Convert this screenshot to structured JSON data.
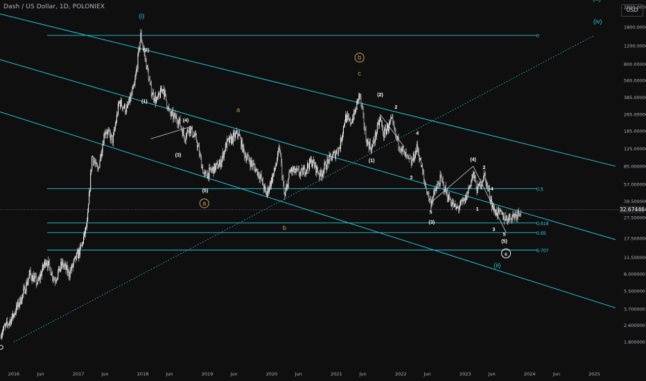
{
  "header": {
    "title": "Dash / US Dollar, 1D, POLONIEX",
    "currency": "USD",
    "last_price": "32.674464"
  },
  "colors": {
    "background": "#0f0f0f",
    "channel": "#26c6da",
    "fib": "#2ec7dc",
    "candles": "#e8e8e8",
    "wave_gold": "#c8a456"
  },
  "chart_data": {
    "type": "candlestick",
    "title": "Dash / US Dollar, 1D, POLONIEX",
    "y_scale": "log",
    "ylim": [
      1.3,
      2800
    ],
    "xlim": [
      "2015-10-15",
      "2025-05-01"
    ],
    "y_ticks": [
      "2800.000000",
      "1800.000000",
      "1200.000000",
      "800.000000",
      "560.000000",
      "385.000000",
      "265.000000",
      "185.000000",
      "125.000000",
      "85.000000",
      "57.000000",
      "39.500000",
      "27.500000",
      "17.500000",
      "11.500000",
      "8.000000",
      "5.500000",
      "3.700000",
      "2.600000",
      "1.800000"
    ],
    "x_ticks": [
      {
        "label": "2016",
        "date": "2016-01-01"
      },
      {
        "label": "Jun",
        "date": "2016-06-01"
      },
      {
        "label": "2017",
        "date": "2017-01-01"
      },
      {
        "label": "Jun",
        "date": "2017-06-01"
      },
      {
        "label": "2018",
        "date": "2018-01-01"
      },
      {
        "label": "Jun",
        "date": "2018-06-01"
      },
      {
        "label": "2019",
        "date": "2019-01-01"
      },
      {
        "label": "Jun",
        "date": "2019-06-01"
      },
      {
        "label": "2020",
        "date": "2020-01-01"
      },
      {
        "label": "Jun",
        "date": "2020-06-01"
      },
      {
        "label": "2021",
        "date": "2021-01-01"
      },
      {
        "label": "Jun",
        "date": "2021-06-01"
      },
      {
        "label": "2022",
        "date": "2022-01-01"
      },
      {
        "label": "Jun",
        "date": "2022-06-01"
      },
      {
        "label": "2023",
        "date": "2023-01-01"
      },
      {
        "label": "Jun",
        "date": "2023-06-01"
      },
      {
        "label": "2024",
        "date": "2024-01-01"
      },
      {
        "label": "Jun",
        "date": "2024-06-01"
      },
      {
        "label": "2025",
        "date": "2025-01-01"
      }
    ],
    "price_path": [
      [
        "2015-10-20",
        2.2
      ],
      [
        "2015-12-20",
        3.0
      ],
      [
        "2016-02-20",
        5.0
      ],
      [
        "2016-04-01",
        8.0
      ],
      [
        "2016-05-15",
        6.5
      ],
      [
        "2016-07-01",
        11.0
      ],
      [
        "2016-08-20",
        7.0
      ],
      [
        "2016-10-01",
        10.0
      ],
      [
        "2016-11-10",
        8.0
      ],
      [
        "2016-12-15",
        11.0
      ],
      [
        "2017-01-15",
        14.0
      ],
      [
        "2017-02-20",
        24.0
      ],
      [
        "2017-03-20",
        110.0
      ],
      [
        "2017-04-20",
        75.0
      ],
      [
        "2017-06-01",
        190.0
      ],
      [
        "2017-07-15",
        150.0
      ],
      [
        "2017-08-20",
        350.0
      ],
      [
        "2017-10-01",
        290.0
      ],
      [
        "2017-11-15",
        500.0
      ],
      [
        "2017-12-20",
        1500.0
      ],
      [
        "2018-01-15",
        900.0
      ],
      [
        "2018-02-15",
        450.0
      ],
      [
        "2018-03-20",
        350.0
      ],
      [
        "2018-04-25",
        480.0
      ],
      [
        "2018-06-01",
        270.0
      ],
      [
        "2018-07-25",
        230.0
      ],
      [
        "2018-08-25",
        160.0
      ],
      [
        "2018-09-20",
        200.0
      ],
      [
        "2018-11-01",
        150.0
      ],
      [
        "2018-12-15",
        68.0
      ],
      [
        "2019-01-15",
        75.0
      ],
      [
        "2019-03-15",
        90.0
      ],
      [
        "2019-04-20",
        140.0
      ],
      [
        "2019-06-25",
        175.0
      ],
      [
        "2019-08-01",
        110.0
      ],
      [
        "2019-09-20",
        85.0
      ],
      [
        "2019-10-25",
        70.0
      ],
      [
        "2019-12-01",
        45.0
      ],
      [
        "2020-01-15",
        75.0
      ],
      [
        "2020-02-15",
        125.0
      ],
      [
        "2020-03-13",
        42.0
      ],
      [
        "2020-04-15",
        78.0
      ],
      [
        "2020-06-15",
        72.0
      ],
      [
        "2020-08-15",
        95.0
      ],
      [
        "2020-10-01",
        70.0
      ],
      [
        "2020-11-15",
        95.0
      ],
      [
        "2020-12-20",
        110.0
      ],
      [
        "2021-01-20",
        130.0
      ],
      [
        "2021-02-20",
        250.0
      ],
      [
        "2021-03-20",
        220.0
      ],
      [
        "2021-04-15",
        270.0
      ],
      [
        "2021-05-12",
        420.0
      ],
      [
        "2021-06-20",
        150.0
      ],
      [
        "2021-07-20",
        125.0
      ],
      [
        "2021-09-06",
        240.0
      ],
      [
        "2021-09-25",
        170.0
      ],
      [
        "2021-11-10",
        230.0
      ],
      [
        "2021-12-05",
        160.0
      ],
      [
        "2022-01-20",
        110.0
      ],
      [
        "2022-03-01",
        90.0
      ],
      [
        "2022-04-05",
        130.0
      ],
      [
        "2022-05-15",
        60.0
      ],
      [
        "2022-06-18",
        38.0
      ],
      [
        "2022-08-15",
        65.0
      ],
      [
        "2022-09-20",
        45.0
      ],
      [
        "2022-11-10",
        33.0
      ],
      [
        "2022-12-31",
        40.0
      ],
      [
        "2023-02-15",
        72.0
      ],
      [
        "2023-03-10",
        50.0
      ],
      [
        "2023-04-18",
        70.0
      ],
      [
        "2023-06-12",
        32.0
      ],
      [
        "2023-07-15",
        30.0
      ],
      [
        "2023-08-20",
        27.0
      ],
      [
        "2023-09-15",
        28.0
      ],
      [
        "2023-10-20",
        30.0
      ],
      [
        "2023-11-12",
        33.0
      ]
    ],
    "horizontal_levels": [
      {
        "label": "0",
        "value": 1500
      },
      {
        "label": "0.5",
        "value": 52
      },
      {
        "label": "0.618",
        "value": 24.5
      },
      {
        "label": "0.65",
        "value": 19.8
      },
      {
        "label": "0.707",
        "value": 13.5
      }
    ],
    "channel_lines": [
      [
        [
          "2015-10-15",
          2400
        ],
        [
          "2025-05-01",
          85
        ]
      ],
      [
        [
          "2015-10-15",
          880
        ],
        [
          "2025-05-01",
          17
        ]
      ],
      [
        [
          "2015-10-15",
          280
        ],
        [
          "2025-05-01",
          3.8
        ]
      ]
    ],
    "diagonal_dotted": [
      [
        "2016-01-01",
        1.8
      ],
      [
        "2025-01-01",
        1500
      ]
    ],
    "wave_labels": [
      {
        "text": "(i)",
        "date": "2017-12-25",
        "price": 2200,
        "style": "cyan"
      },
      {
        "text": "(iii)",
        "date": "2025-01-15",
        "price": 3200,
        "style": "cyan"
      },
      {
        "text": "(iv)",
        "date": "2025-01-20",
        "price": 1950,
        "style": "cyan"
      },
      {
        "text": "(ii)",
        "date": "2023-07-01",
        "price": 9.2,
        "style": "cyan"
      },
      {
        "text": "b",
        "date": "2021-05-12",
        "price": 880,
        "style": "gold-circle"
      },
      {
        "text": "c",
        "date": "2021-05-12",
        "price": 620,
        "style": "gold"
      },
      {
        "text": "a",
        "date": "2019-06-25",
        "price": 280,
        "style": "gold"
      },
      {
        "text": "a",
        "date": "2018-12-15",
        "price": 36,
        "style": "gold-circle"
      },
      {
        "text": "b",
        "date": "2020-03-13",
        "price": 21,
        "style": "gold"
      },
      {
        "text": "c",
        "date": "2023-08-20",
        "price": 12,
        "style": "white-circle"
      },
      {
        "text": "(2)",
        "date": "2018-01-20",
        "price": 1050,
        "style": "white"
      },
      {
        "text": "(1)",
        "date": "2018-01-10",
        "price": 340,
        "style": "white"
      },
      {
        "text": "(4)",
        "date": "2018-09-01",
        "price": 225,
        "style": "white"
      },
      {
        "text": "(3)",
        "date": "2018-07-20",
        "price": 105,
        "style": "white"
      },
      {
        "text": "(5)",
        "date": "2018-12-20",
        "price": 48,
        "style": "white"
      },
      {
        "text": "(2)",
        "date": "2021-09-06",
        "price": 395,
        "style": "white"
      },
      {
        "text": "2",
        "date": "2021-12-05",
        "price": 300,
        "style": "white"
      },
      {
        "text": "1",
        "date": "2021-10-20",
        "price": 200,
        "style": "white"
      },
      {
        "text": "(1)",
        "date": "2021-07-20",
        "price": 93,
        "style": "white"
      },
      {
        "text": "4",
        "date": "2022-04-05",
        "price": 170,
        "style": "white"
      },
      {
        "text": "3",
        "date": "2022-03-01",
        "price": 64,
        "style": "white"
      },
      {
        "text": "5",
        "date": "2022-06-20",
        "price": 30,
        "style": "white"
      },
      {
        "text": "(3)",
        "date": "2022-06-25",
        "price": 24,
        "style": "white"
      },
      {
        "text": "(4)",
        "date": "2023-02-15",
        "price": 95,
        "style": "white"
      },
      {
        "text": "2",
        "date": "2023-04-18",
        "price": 80,
        "style": "white"
      },
      {
        "text": "1",
        "date": "2023-03-10",
        "price": 32,
        "style": "white"
      },
      {
        "text": "4",
        "date": "2023-06-01",
        "price": 50,
        "style": "white"
      },
      {
        "text": "3",
        "date": "2023-06-12",
        "price": 20.5,
        "style": "white"
      },
      {
        "text": "5",
        "date": "2023-08-10",
        "price": 18.5,
        "style": "white"
      },
      {
        "text": "(5)",
        "date": "2023-08-10",
        "price": 15.8,
        "style": "white"
      }
    ],
    "wave_lines": [
      [
        [
          "2018-02-15",
          155
        ],
        [
          "2018-09-20",
          200
        ]
      ],
      [
        [
          "2021-09-06",
          265
        ],
        [
          "2022-01-20",
          130
        ]
      ],
      [
        [
          "2022-06-18",
          38
        ],
        [
          "2023-02-15",
          85
        ]
      ],
      [
        [
          "2023-02-15",
          85
        ],
        [
          "2023-08-20",
          20
        ]
      ]
    ]
  }
}
